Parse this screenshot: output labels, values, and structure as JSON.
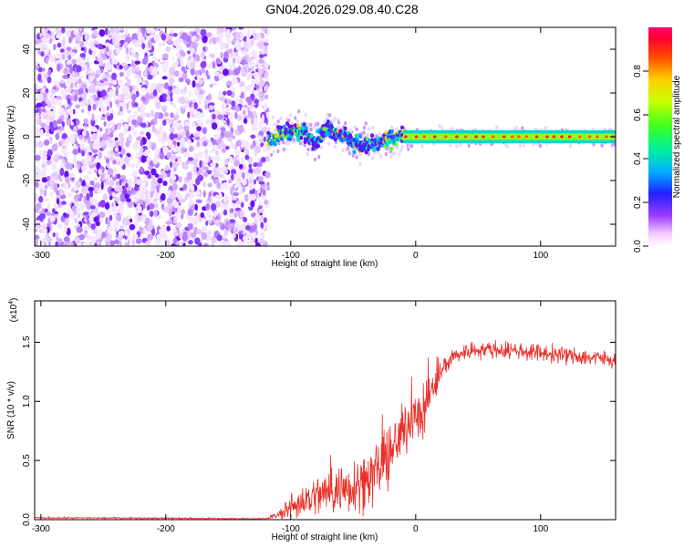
{
  "title": "GN04.2026.029.08.40.C28",
  "chart_data": [
    {
      "type": "heatmap",
      "title": "GN04.2026.029.08.40.C28",
      "xlabel": "Height of straight line (km)",
      "ylabel": "Frequency (Hz)",
      "xlim": [
        -305,
        160
      ],
      "ylim": [
        -50,
        50
      ],
      "x_ticks": [
        -300,
        -200,
        -100,
        0,
        100
      ],
      "y_ticks": [
        -40,
        -20,
        0,
        20,
        40
      ],
      "colorbar": {
        "label": "Normalized spectral amplitude",
        "range": [
          0.0,
          1.0
        ],
        "ticks": [
          "0.0",
          "0.2",
          "0.4",
          "0.6",
          "0.8"
        ],
        "colors": [
          "#ffffff",
          "#ff80ff",
          "#8000ff",
          "#0000ff",
          "#00c0ff",
          "#00ff80",
          "#80ff00",
          "#ffff00",
          "#ff8000",
          "#ff0000",
          "#ff0080"
        ]
      },
      "regions": [
        {
          "name": "noise",
          "x_range": [
            -305,
            -118
          ],
          "freq_range": [
            -50,
            50
          ],
          "amplitude": 0.15
        },
        {
          "name": "signal-turbulent",
          "x_range": [
            -118,
            -10
          ],
          "freq_center": 0,
          "amplitude": 0.5
        },
        {
          "name": "signal-stable",
          "x_range": [
            -10,
            160
          ],
          "freq_center": 0,
          "amplitude": 0.9
        }
      ],
      "signal_track": {
        "x": [
          -120,
          -110,
          -100,
          -90,
          -80,
          -70,
          -60,
          -50,
          -40,
          -30,
          -20,
          -15,
          -10,
          -5,
          0,
          20,
          40,
          60,
          80,
          100,
          120,
          140,
          160
        ],
        "freq": [
          -3,
          1,
          3,
          2,
          -2,
          4,
          1,
          -3,
          -4,
          -3,
          -1,
          0,
          1,
          -4,
          0,
          0,
          0,
          0,
          0,
          0,
          0,
          0,
          0
        ]
      }
    },
    {
      "type": "line",
      "xlabel": "Height of straight line (km)",
      "ylabel": "SNR (10 * v/v)",
      "y_multiplier": "(x10",
      "y_multiplier_exp": "4",
      "y_multiplier_close": ")",
      "xlim": [
        -305,
        160
      ],
      "ylim": [
        0,
        18500
      ],
      "x_ticks": [
        -300,
        -200,
        -100,
        0,
        100
      ],
      "y_ticks": [
        "0.0",
        "0.5",
        "1.0",
        "1.5"
      ],
      "color": "#e8302a",
      "envelope": {
        "x": [
          -305,
          -250,
          -200,
          -150,
          -120,
          -110,
          -100,
          -90,
          -80,
          -70,
          -60,
          -50,
          -40,
          -30,
          -20,
          -10,
          0,
          5,
          10,
          15,
          20,
          25,
          30,
          40,
          50,
          60,
          80,
          100,
          120,
          140,
          160
        ],
        "baseline": [
          150,
          140,
          120,
          90,
          80,
          400,
          1000,
          1600,
          2000,
          2300,
          2600,
          3000,
          3400,
          4200,
          5500,
          7500,
          9500,
          8000,
          10500,
          11000,
          12500,
          13300,
          13800,
          14200,
          14400,
          14400,
          14300,
          14100,
          13900,
          13700,
          13500
        ],
        "spread": [
          100,
          100,
          100,
          80,
          60,
          500,
          1500,
          2200,
          2600,
          3000,
          3200,
          3500,
          3700,
          3800,
          3600,
          3300,
          3000,
          3500,
          2500,
          2000,
          1500,
          1300,
          1200,
          1100,
          1100,
          1100,
          1100,
          1100,
          1100,
          1100,
          1100
        ]
      }
    }
  ]
}
